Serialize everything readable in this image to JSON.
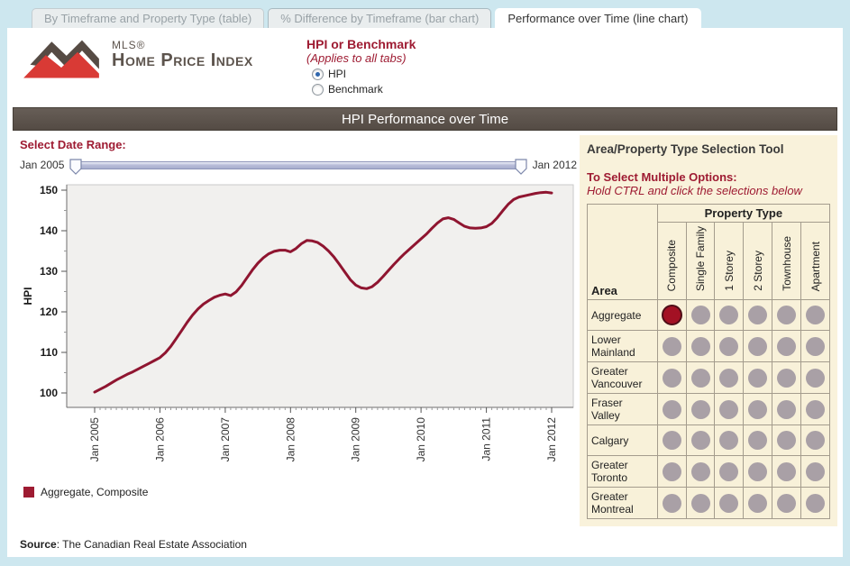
{
  "tabs": [
    {
      "label": "By Timeframe and Property Type (table)",
      "active": false
    },
    {
      "label": "% Difference by Timeframe (bar chart)",
      "active": false
    },
    {
      "label": "Performance over Time (line chart)",
      "active": true
    }
  ],
  "logo": {
    "mls": "MLS®",
    "title": "Home Price Index"
  },
  "hpi_toggle": {
    "title": "HPI or Benchmark",
    "subtitle": "(Applies to all tabs)",
    "options": [
      {
        "label": "HPI",
        "selected": true
      },
      {
        "label": "Benchmark",
        "selected": false
      }
    ]
  },
  "title_bar": "HPI Performance over Time",
  "date_range": {
    "label": "Select Date Range:",
    "start": "Jan 2005",
    "end": "Jan 2012"
  },
  "legend": {
    "label": "Aggregate, Composite",
    "color": "#9e1b32"
  },
  "source": {
    "label": "Source",
    "text": ": The Canadian Real Estate Association"
  },
  "selection_tool": {
    "title": "Area/Property Type Selection Tool",
    "instruction_title": "To Select Multiple Options:",
    "instruction_text": "Hold CTRL and click the selections below",
    "column_group": "Property Type",
    "row_group": "Area",
    "property_types": [
      "Composite",
      "Single Family",
      "1 Storey",
      "2 Storey",
      "Townhouse",
      "Apartment"
    ],
    "areas": [
      "Aggregate",
      "Lower Mainland",
      "Greater Vancouver",
      "Fraser Valley",
      "Calgary",
      "Greater Toronto",
      "Greater Montreal"
    ],
    "selected": {
      "area": "Aggregate",
      "property_type": "Composite"
    }
  },
  "colors": {
    "accent_red": "#9e1b32",
    "line": "#8f1530",
    "titlebar_bg": "#5d544d",
    "panel_bg": "#f9f2db",
    "dot_gray": "#a9a0a6",
    "dot_selected": "#a31124"
  },
  "chart_data": {
    "type": "line",
    "title": "HPI Performance over Time",
    "xlabel": "",
    "ylabel": "HPI",
    "ylim": [
      96,
      152
    ],
    "yticks": [
      100,
      110,
      120,
      130,
      140,
      150
    ],
    "grid": false,
    "legend_position": "below",
    "x_tick_labels": [
      "Jan 2005",
      "Jan 2006",
      "Jan 2007",
      "Jan 2008",
      "Jan 2009",
      "Jan 2010",
      "Jan 2011",
      "Jan 2012"
    ],
    "x_frequency": "monthly",
    "series": [
      {
        "name": "Aggregate, Composite",
        "color": "#8f1530",
        "start": "Jan 2005",
        "end": "Jan 2012",
        "values": [
          100.2,
          100.9,
          101.6,
          102.4,
          103.2,
          103.9,
          104.6,
          105.2,
          105.9,
          106.6,
          107.3,
          108.0,
          108.7,
          109.9,
          111.5,
          113.4,
          115.4,
          117.4,
          119.2,
          120.7,
          121.9,
          122.8,
          123.6,
          124.1,
          124.4,
          124.0,
          124.9,
          126.5,
          128.4,
          130.3,
          132.0,
          133.3,
          134.3,
          134.9,
          135.2,
          135.2,
          134.8,
          135.6,
          136.8,
          137.6,
          137.5,
          137.1,
          136.2,
          135.0,
          133.5,
          131.7,
          129.8,
          127.9,
          126.6,
          125.9,
          125.7,
          126.2,
          127.3,
          128.7,
          130.2,
          131.7,
          133.1,
          134.4,
          135.6,
          136.8,
          138.0,
          139.2,
          140.6,
          141.9,
          142.9,
          143.2,
          142.8,
          141.9,
          141.1,
          140.7,
          140.6,
          140.7,
          141.0,
          141.8,
          143.2,
          144.9,
          146.5,
          147.7,
          148.3,
          148.6,
          148.9,
          149.2,
          149.4,
          149.5,
          149.3
        ]
      }
    ]
  }
}
